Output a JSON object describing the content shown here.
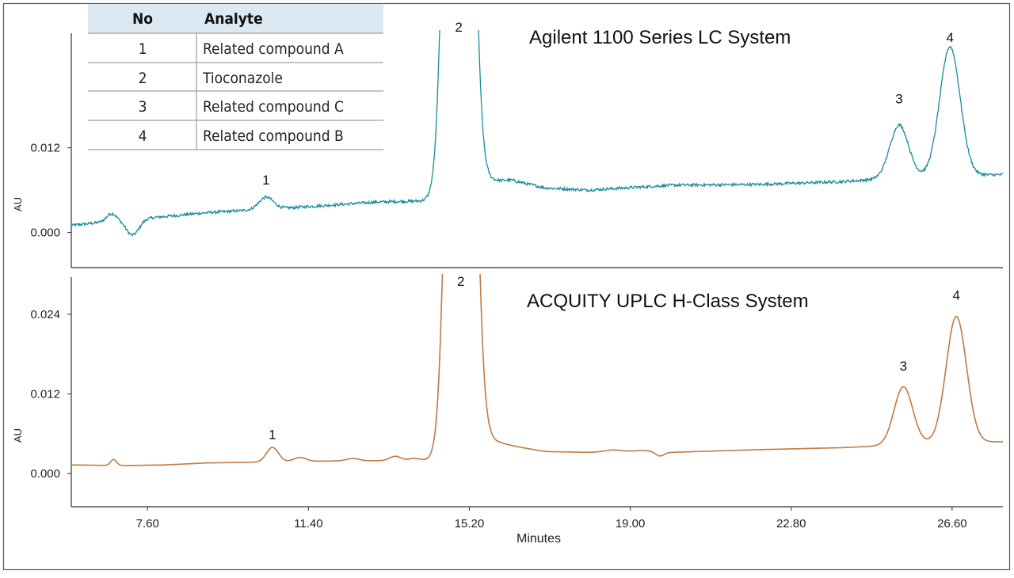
{
  "chart_data": [
    {
      "type": "line",
      "title": "Agilent 1100 Series LC System",
      "ylabel": "AU",
      "xlabel": "",
      "xlim": [
        5.8,
        27.8
      ],
      "ylim": [
        -0.005,
        0.0305
      ],
      "y_ticks": [
        "0.000",
        "0.012"
      ],
      "y_tick_values": [
        0,
        0.012
      ],
      "color": "#1a8a9e",
      "noise": true,
      "baseline": [
        [
          5.8,
          0.001
        ],
        [
          6.8,
          0.0016
        ],
        [
          7.2,
          0.0018
        ],
        [
          9.0,
          0.0028
        ],
        [
          11.0,
          0.0035
        ],
        [
          13.0,
          0.0043
        ],
        [
          14.4,
          0.0045
        ],
        [
          15.5,
          0.0068
        ],
        [
          16.2,
          0.0073
        ],
        [
          17.0,
          0.0063
        ],
        [
          18.0,
          0.006
        ],
        [
          20.0,
          0.0067
        ],
        [
          22.0,
          0.0068
        ],
        [
          24.0,
          0.0072
        ],
        [
          25.0,
          0.0076
        ],
        [
          26.0,
          0.008
        ],
        [
          27.8,
          0.0082
        ]
      ],
      "peaks": [
        {
          "label": "1",
          "x": 10.4,
          "height": 0.0017,
          "sigma": 0.17
        },
        {
          "label": "2",
          "x": 14.95,
          "height": 0.2,
          "sigma": 0.22
        },
        {
          "label": "3",
          "x": 25.35,
          "height": 0.0075,
          "sigma": 0.22
        },
        {
          "label": "4",
          "x": 26.55,
          "height": 0.0183,
          "sigma": 0.24
        }
      ],
      "dips": [
        {
          "x": 6.75,
          "height": 0.0011,
          "sigma": 0.12
        },
        {
          "x": 7.25,
          "height": -0.0022,
          "sigma": 0.15
        }
      ],
      "peak_label_y": [
        0.0068,
        0.0285,
        0.0183,
        0.027
      ]
    },
    {
      "type": "line",
      "title": "ACQUITY UPLC H-Class System",
      "ylabel": "AU",
      "xlabel": "Minutes",
      "xlim": [
        5.8,
        27.8
      ],
      "ylim": [
        -0.005,
        0.0302
      ],
      "y_ticks": [
        "0.000",
        "0.012",
        "0.024"
      ],
      "y_tick_values": [
        0,
        0.012,
        0.024
      ],
      "x_ticks": [
        "7.60",
        "11.40",
        "15.20",
        "19.00",
        "22.80",
        "26.60"
      ],
      "x_tick_values": [
        7.6,
        11.4,
        15.2,
        19.0,
        22.8,
        26.6
      ],
      "color": "#c07a42",
      "noise": false,
      "baseline": [
        [
          5.8,
          0.0013
        ],
        [
          7.0,
          0.0012
        ],
        [
          8.0,
          0.0013
        ],
        [
          9.0,
          0.0016
        ],
        [
          10.0,
          0.0017
        ],
        [
          12.0,
          0.0019
        ],
        [
          14.4,
          0.002
        ],
        [
          15.4,
          0.0055
        ],
        [
          15.8,
          0.0045
        ],
        [
          17.0,
          0.0033
        ],
        [
          18.0,
          0.0032
        ],
        [
          19.0,
          0.0033
        ],
        [
          20.0,
          0.0032
        ],
        [
          22.0,
          0.0036
        ],
        [
          24.0,
          0.0039
        ],
        [
          25.0,
          0.0042
        ],
        [
          26.0,
          0.0046
        ],
        [
          27.8,
          0.0048
        ]
      ],
      "peaks": [
        {
          "label": "1",
          "x": 10.55,
          "height": 0.0022,
          "sigma": 0.14
        },
        {
          "label": "2",
          "x": 15.0,
          "height": 0.2,
          "sigma": 0.22
        },
        {
          "label": "3",
          "x": 25.45,
          "height": 0.0087,
          "sigma": 0.22
        },
        {
          "label": "4",
          "x": 26.7,
          "height": 0.019,
          "sigma": 0.24
        }
      ],
      "minor_peaks": [
        {
          "x": 6.8,
          "height": 0.0009,
          "sigma": 0.07
        },
        {
          "x": 11.2,
          "height": 0.0006,
          "sigma": 0.15
        },
        {
          "x": 12.45,
          "height": 0.00035,
          "sigma": 0.15
        },
        {
          "x": 13.45,
          "height": 0.00065,
          "sigma": 0.13
        },
        {
          "x": 13.9,
          "height": 0.0003,
          "sigma": 0.13
        },
        {
          "x": 18.6,
          "height": 0.0003,
          "sigma": 0.2
        },
        {
          "x": 19.3,
          "height": 0.0002,
          "sigma": 0.2
        },
        {
          "x": 19.7,
          "height": -0.0006,
          "sigma": 0.1
        }
      ],
      "peak_label_y": [
        0.0052,
        0.0283,
        0.0155,
        0.0262
      ]
    }
  ],
  "table": {
    "headers": {
      "no": "No",
      "analyte": "Analyte"
    },
    "rows": [
      {
        "no": "1",
        "analyte": "Related compound A"
      },
      {
        "no": "2",
        "analyte": "Tioconazole"
      },
      {
        "no": "3",
        "analyte": "Related compound C"
      },
      {
        "no": "4",
        "analyte": "Related compound B"
      }
    ],
    "header_color": "#dce9f2",
    "rule_color": "#8a8a8a"
  }
}
